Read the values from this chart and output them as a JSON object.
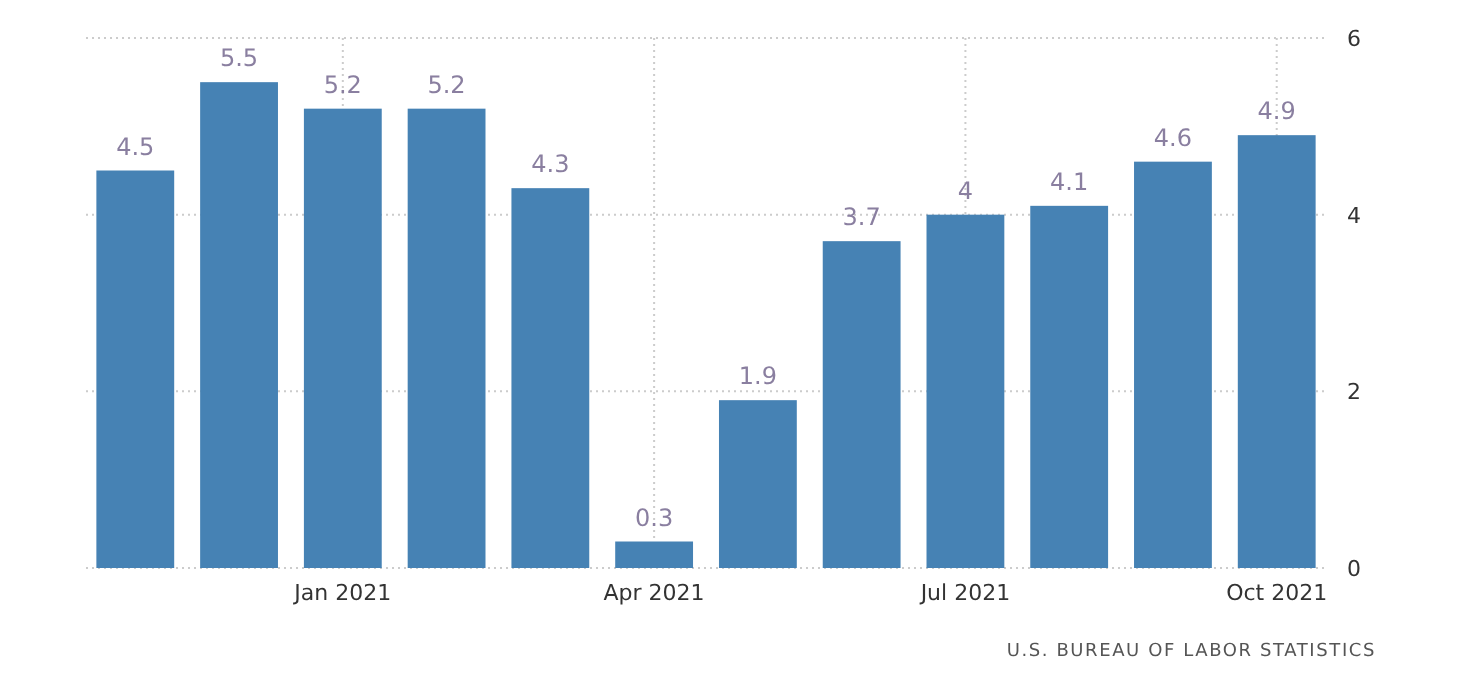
{
  "chart_data": {
    "type": "bar",
    "categories": [
      null,
      null,
      "Jan 2021",
      null,
      null,
      "Apr 2021",
      null,
      null,
      "Jul 2021",
      null,
      null,
      "Oct 2021"
    ],
    "values": [
      4.5,
      5.5,
      5.2,
      5.2,
      4.3,
      0.3,
      1.9,
      3.7,
      4,
      4.1,
      4.6,
      4.9
    ],
    "color": "#4682b4",
    "ylim": [
      0,
      6
    ],
    "yticks": [
      0,
      2,
      4,
      6
    ],
    "grid": true,
    "data_labels": true,
    "annotations": [
      "U.S. BUREAU OF LABOR STATISTICS"
    ]
  }
}
